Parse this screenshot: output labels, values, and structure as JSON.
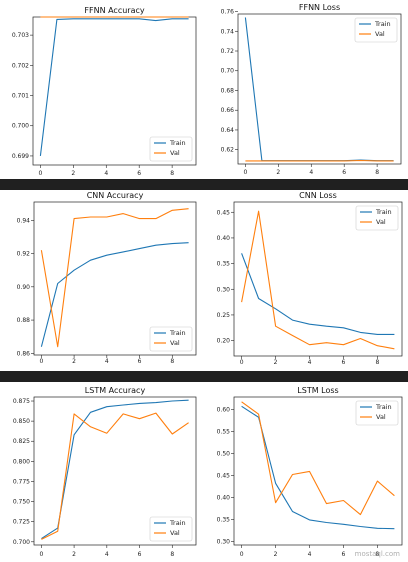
{
  "colors": {
    "train": "#1f77b4",
    "val": "#ff7f0e",
    "separator": "#202020"
  },
  "chart_data": [
    {
      "type": "line",
      "title": "FFNN Accuracy",
      "x": [
        0,
        1,
        2,
        3,
        4,
        5,
        6,
        7,
        8,
        9
      ],
      "xticks": [
        0,
        2,
        4,
        6,
        8
      ],
      "yticks": [
        0.699,
        0.7,
        0.701,
        0.702,
        0.703
      ],
      "yticklabels": [
        "0.699",
        "0.700",
        "0.701",
        "0.702",
        "0.703"
      ],
      "ylim": [
        0.6987,
        0.7036
      ],
      "legend_position": "lower-right",
      "series": [
        {
          "name": "Train",
          "color": "#1f77b4",
          "values": [
            0.699,
            0.70352,
            0.70354,
            0.70354,
            0.70354,
            0.70354,
            0.70354,
            0.70348,
            0.70354,
            0.70354
          ]
        },
        {
          "name": "Val",
          "color": "#ff7f0e",
          "values": [
            0.7036,
            0.7036,
            0.7036,
            0.7036,
            0.7036,
            0.7036,
            0.7036,
            0.7036,
            0.7036,
            0.7036
          ]
        }
      ]
    },
    {
      "type": "line",
      "title": "FFNN Loss",
      "x": [
        0,
        1,
        2,
        3,
        4,
        5,
        6,
        7,
        8,
        9
      ],
      "xticks": [
        0,
        2,
        4,
        6,
        8
      ],
      "yticks": [
        0.62,
        0.64,
        0.66,
        0.68,
        0.7,
        0.72,
        0.74,
        0.76
      ],
      "yticklabels": [
        "0.62",
        "0.64",
        "0.66",
        "0.68",
        "0.70",
        "0.72",
        "0.74",
        "0.76"
      ],
      "ylim": [
        0.6055,
        0.7575
      ],
      "legend_position": "upper-right",
      "series": [
        {
          "name": "Train",
          "color": "#1f77b4",
          "values": [
            0.754,
            0.6088,
            0.6088,
            0.6088,
            0.6088,
            0.6088,
            0.6088,
            0.6095,
            0.6088,
            0.6088
          ]
        },
        {
          "name": "Val",
          "color": "#ff7f0e",
          "values": [
            0.6086,
            0.6086,
            0.6086,
            0.6086,
            0.6086,
            0.6086,
            0.6086,
            0.609,
            0.6086,
            0.6086
          ]
        }
      ]
    },
    {
      "type": "line",
      "title": "CNN Accuracy",
      "x": [
        0,
        1,
        2,
        3,
        4,
        5,
        6,
        7,
        8,
        9
      ],
      "xticks": [
        0,
        2,
        4,
        6,
        8
      ],
      "yticks": [
        0.86,
        0.88,
        0.9,
        0.92,
        0.94
      ],
      "yticklabels": [
        "0.86",
        "0.88",
        "0.90",
        "0.92",
        "0.94"
      ],
      "ylim": [
        0.859,
        0.951
      ],
      "legend_position": "lower-right",
      "series": [
        {
          "name": "Train",
          "color": "#1f77b4",
          "values": [
            0.864,
            0.902,
            0.91,
            0.916,
            0.919,
            0.921,
            0.923,
            0.925,
            0.926,
            0.9265
          ]
        },
        {
          "name": "Val",
          "color": "#ff7f0e",
          "values": [
            0.922,
            0.864,
            0.941,
            0.942,
            0.942,
            0.944,
            0.941,
            0.941,
            0.946,
            0.947
          ]
        }
      ]
    },
    {
      "type": "line",
      "title": "CNN Loss",
      "x": [
        0,
        1,
        2,
        3,
        4,
        5,
        6,
        7,
        8,
        9
      ],
      "xticks": [
        0,
        2,
        4,
        6,
        8
      ],
      "yticks": [
        0.2,
        0.25,
        0.3,
        0.35,
        0.4,
        0.45
      ],
      "yticklabels": [
        "0.20",
        "0.25",
        "0.30",
        "0.35",
        "0.40",
        "0.45"
      ],
      "ylim": [
        0.17,
        0.47
      ],
      "legend_position": "upper-right",
      "series": [
        {
          "name": "Train",
          "color": "#1f77b4",
          "values": [
            0.37,
            0.282,
            0.262,
            0.24,
            0.232,
            0.228,
            0.225,
            0.216,
            0.212,
            0.212
          ]
        },
        {
          "name": "Val",
          "color": "#ff7f0e",
          "values": [
            0.275,
            0.452,
            0.228,
            0.21,
            0.192,
            0.196,
            0.192,
            0.204,
            0.19,
            0.184
          ]
        }
      ]
    },
    {
      "type": "line",
      "title": "LSTM Accuracy",
      "x": [
        0,
        1,
        2,
        3,
        4,
        5,
        6,
        7,
        8,
        9
      ],
      "xticks": [
        0,
        2,
        4,
        6,
        8
      ],
      "yticks": [
        0.7,
        0.725,
        0.75,
        0.775,
        0.8,
        0.825,
        0.85,
        0.875
      ],
      "yticklabels": [
        "0.700",
        "0.725",
        "0.750",
        "0.775",
        "0.800",
        "0.825",
        "0.850",
        "0.875"
      ],
      "ylim": [
        0.696,
        0.88
      ],
      "legend_position": "lower-right",
      "series": [
        {
          "name": "Train",
          "color": "#1f77b4",
          "values": [
            0.704,
            0.717,
            0.833,
            0.861,
            0.868,
            0.87,
            0.872,
            0.873,
            0.875,
            0.876
          ]
        },
        {
          "name": "Val",
          "color": "#ff7f0e",
          "values": [
            0.703,
            0.713,
            0.859,
            0.843,
            0.835,
            0.859,
            0.853,
            0.86,
            0.834,
            0.848
          ]
        }
      ]
    },
    {
      "type": "line",
      "title": "LSTM Loss",
      "x": [
        0,
        1,
        2,
        3,
        4,
        5,
        6,
        7,
        8,
        9
      ],
      "xticks": [
        0,
        2,
        4,
        6,
        8
      ],
      "yticks": [
        0.3,
        0.35,
        0.4,
        0.45,
        0.5,
        0.55,
        0.6
      ],
      "yticklabels": [
        "0.30",
        "0.35",
        "0.40",
        "0.45",
        "0.50",
        "0.55",
        "0.60"
      ],
      "ylim": [
        0.292,
        0.628
      ],
      "legend_position": "upper-right",
      "series": [
        {
          "name": "Train",
          "color": "#1f77b4",
          "values": [
            0.607,
            0.582,
            0.432,
            0.368,
            0.349,
            0.343,
            0.339,
            0.334,
            0.33,
            0.329
          ]
        },
        {
          "name": "Val",
          "color": "#ff7f0e",
          "values": [
            0.617,
            0.589,
            0.388,
            0.452,
            0.459,
            0.386,
            0.393,
            0.361,
            0.437,
            0.404
          ]
        }
      ]
    }
  ],
  "watermark": "mostaql.com"
}
